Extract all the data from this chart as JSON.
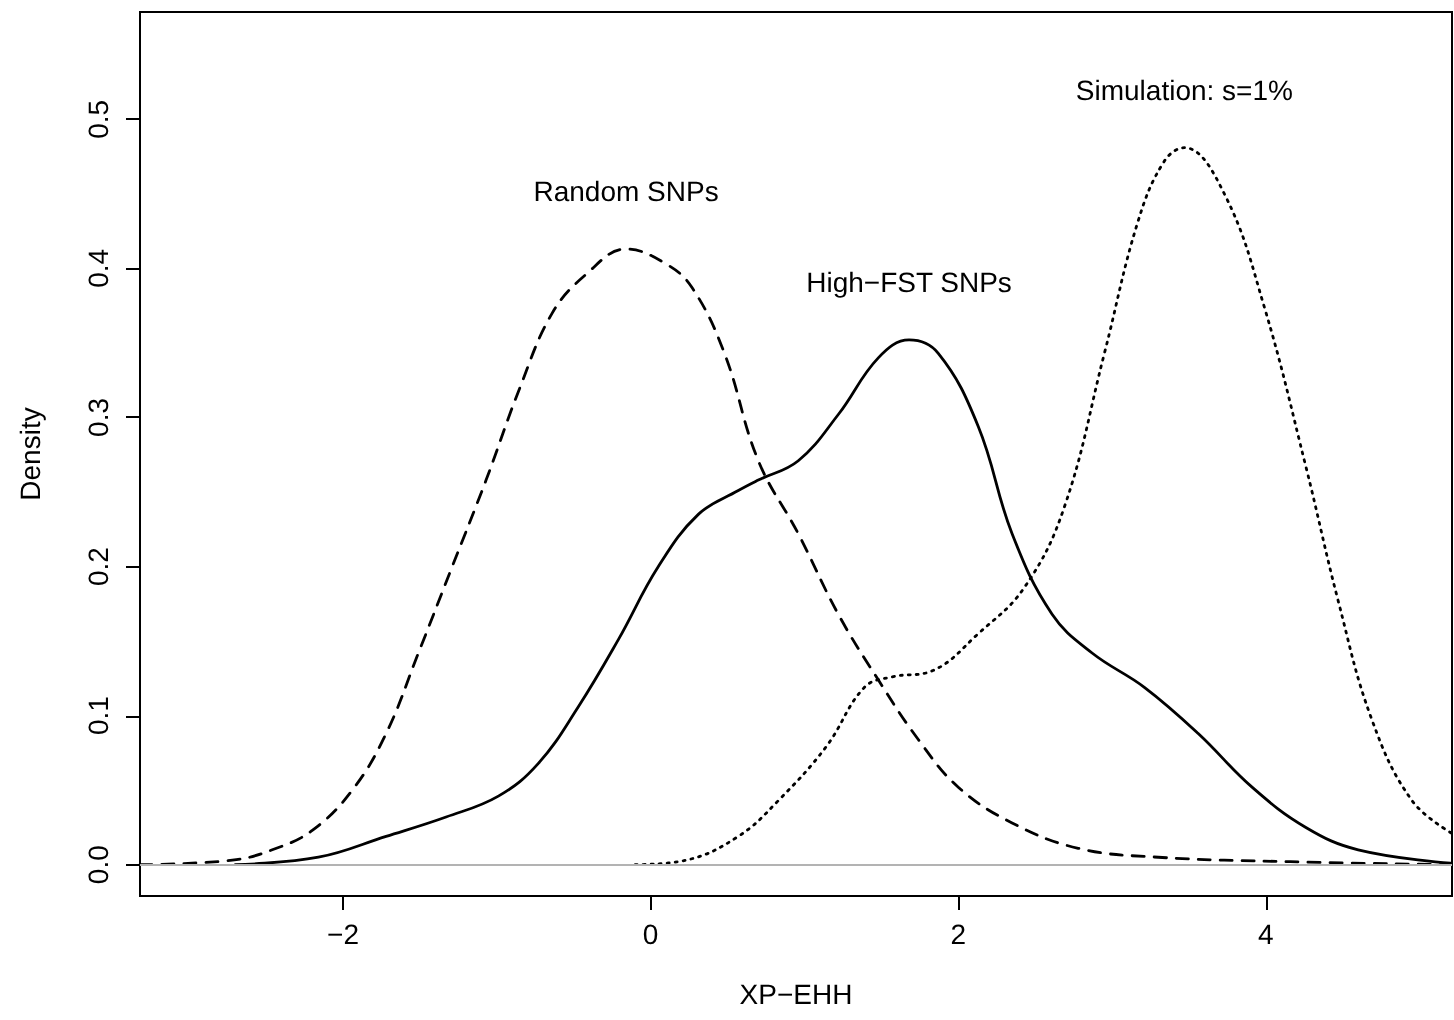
{
  "chart_data": {
    "type": "line",
    "xlabel": "XP−EHH",
    "ylabel": "Density",
    "xlim": [
      -3.32,
      5.21
    ],
    "ylim": [
      -0.021,
      0.572
    ],
    "xticks": [
      {
        "value": -2,
        "label": "−2"
      },
      0,
      2,
      4
    ],
    "yticks": [
      {
        "value": 0,
        "label": "0.0"
      },
      0.1,
      0.2,
      0.3,
      0.4,
      0.5
    ],
    "grid": false,
    "marker": "none",
    "series": [
      {
        "name": "Random SNPs",
        "color": "#000000",
        "line_style": "dashed",
        "x": [
          -3.32,
          -2.72,
          -2.46,
          -2.2,
          -1.94,
          -1.72,
          -1.51,
          -1.29,
          -1.07,
          -0.85,
          -0.64,
          -0.42,
          -0.16,
          0.1,
          0.27,
          0.48,
          0.7,
          0.96,
          1.22,
          1.48,
          1.74,
          2.0,
          2.35,
          2.78,
          3.3,
          4.16,
          5.2
        ],
        "values": [
          0,
          0.003,
          0.01,
          0.023,
          0.05,
          0.088,
          0.142,
          0.2,
          0.258,
          0.32,
          0.37,
          0.396,
          0.413,
          0.403,
          0.387,
          0.343,
          0.271,
          0.222,
          0.168,
          0.124,
          0.084,
          0.052,
          0.028,
          0.011,
          0.005,
          0.002,
          0
        ]
      },
      {
        "name": "High−FST SNPs",
        "color": "#000000",
        "line_style": "solid",
        "x": [
          -2.7,
          -2.16,
          -1.72,
          -1.33,
          -0.99,
          -0.73,
          -0.47,
          -0.21,
          0.05,
          0.31,
          0.57,
          0.7,
          0.96,
          1.22,
          1.48,
          1.68,
          1.87,
          2.13,
          2.35,
          2.61,
          2.87,
          3.21,
          3.56,
          3.91,
          4.26,
          4.6,
          5.2
        ],
        "values": [
          0,
          0.005,
          0.019,
          0.032,
          0.046,
          0.068,
          0.106,
          0.151,
          0.2,
          0.235,
          0.251,
          0.258,
          0.271,
          0.302,
          0.34,
          0.352,
          0.343,
          0.294,
          0.222,
          0.168,
          0.142,
          0.119,
          0.088,
          0.052,
          0.025,
          0.01,
          0.001
        ]
      },
      {
        "name": "Simulation: s=1%",
        "color": "#000000",
        "line_style": "dotted",
        "x": [
          -0.1,
          0.23,
          0.57,
          0.83,
          1.14,
          1.39,
          1.57,
          1.83,
          2.13,
          2.43,
          2.69,
          2.95,
          3.17,
          3.34,
          3.47,
          3.73,
          3.99,
          4.26,
          4.47,
          4.69,
          4.95,
          5.21
        ],
        "values": [
          0,
          0.003,
          0.019,
          0.043,
          0.079,
          0.119,
          0.126,
          0.13,
          0.155,
          0.186,
          0.24,
          0.343,
          0.432,
          0.472,
          0.481,
          0.45,
          0.374,
          0.267,
          0.177,
          0.097,
          0.043,
          0.021
        ]
      }
    ],
    "ref_lines": [
      {
        "axis": "y",
        "value": 0,
        "color": "#b3b3b3"
      }
    ]
  }
}
